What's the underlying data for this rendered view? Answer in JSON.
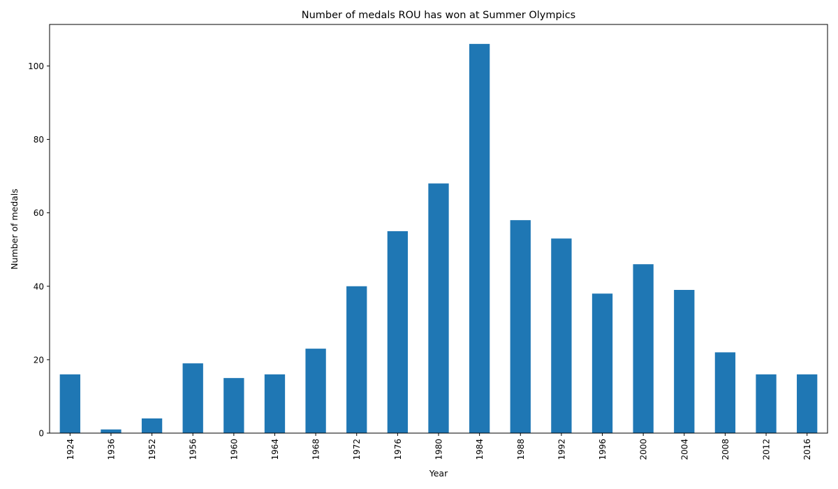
{
  "chart_data": {
    "type": "bar",
    "title": "Number of medals ROU has won at Summer Olympics",
    "xlabel": "Year",
    "ylabel": "Number of medals",
    "categories": [
      "1924",
      "1936",
      "1952",
      "1956",
      "1960",
      "1964",
      "1968",
      "1972",
      "1976",
      "1980",
      "1984",
      "1988",
      "1992",
      "1996",
      "2000",
      "2004",
      "2008",
      "2012",
      "2016"
    ],
    "values": [
      16,
      1,
      4,
      19,
      15,
      16,
      23,
      40,
      55,
      68,
      106,
      58,
      53,
      38,
      46,
      39,
      22,
      16,
      16
    ],
    "ylim": [
      0,
      111.3
    ],
    "yticks": [
      0,
      20,
      40,
      60,
      80,
      100
    ],
    "grid": false,
    "bar_color": "#1f77b4"
  }
}
